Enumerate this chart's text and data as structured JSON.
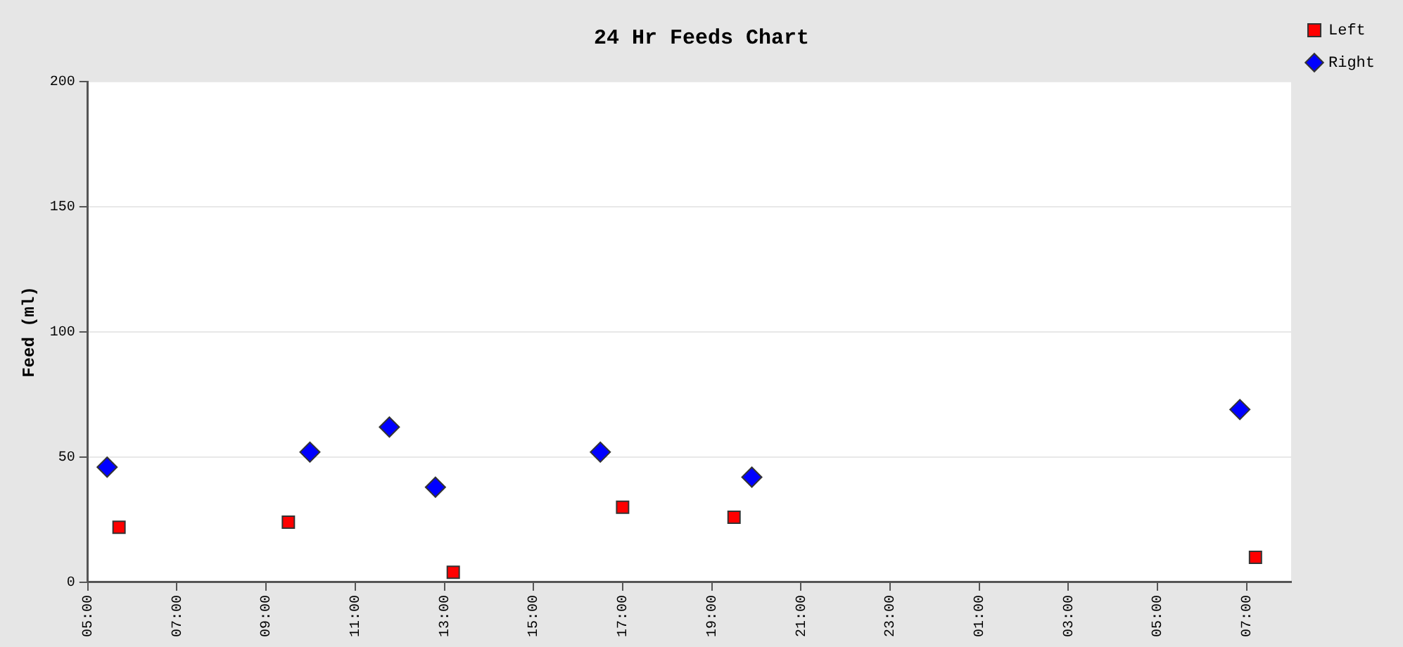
{
  "chart_data": {
    "type": "scatter",
    "title": "24 Hr Feeds Chart",
    "ylabel": "Feed (ml)",
    "xlim": [
      "2000-01-01T05:00",
      "2000-01-02T08:00"
    ],
    "xticks": [
      {
        "value": "2000-01-01T05:00",
        "label": "05:00"
      },
      {
        "value": "2000-01-01T07:00",
        "label": "07:00"
      },
      {
        "value": "2000-01-01T09:00",
        "label": "09:00"
      },
      {
        "value": "2000-01-01T11:00",
        "label": "11:00"
      },
      {
        "value": "2000-01-01T13:00",
        "label": "13:00"
      },
      {
        "value": "2000-01-01T15:00",
        "label": "15:00"
      },
      {
        "value": "2000-01-01T17:00",
        "label": "17:00"
      },
      {
        "value": "2000-01-01T19:00",
        "label": "19:00"
      },
      {
        "value": "2000-01-01T21:00",
        "label": "21:00"
      },
      {
        "value": "2000-01-01T23:00",
        "label": "23:00"
      },
      {
        "value": "2000-01-02T01:00",
        "label": "01:00"
      },
      {
        "value": "2000-01-02T03:00",
        "label": "03:00"
      },
      {
        "value": "2000-01-02T05:00",
        "label": "05:00"
      },
      {
        "value": "2000-01-02T07:00",
        "label": "07:00"
      }
    ],
    "ylim": [
      0,
      200
    ],
    "yticks": [
      0,
      50,
      100,
      150,
      200
    ],
    "grid": "y",
    "legend": "top right",
    "series": [
      {
        "name": "Left",
        "color": "#ff0000",
        "marker": "square",
        "x": [
          "2000-01-01T05:42",
          "2000-01-01T09:30",
          "2000-01-01T13:12",
          "2000-01-01T17:00",
          "2000-01-01T19:30",
          "2000-01-02T07:12"
        ],
        "values": [
          22,
          24,
          4,
          30,
          26,
          10
        ]
      },
      {
        "name": "Right",
        "color": "#0000ff",
        "marker": "diamond",
        "x": [
          "2000-01-01T05:26",
          "2000-01-01T09:59",
          "2000-01-01T11:46",
          "2000-01-01T12:48",
          "2000-01-01T16:30",
          "2000-01-01T19:54",
          "2000-01-02T06:51"
        ],
        "values": [
          46,
          52,
          62,
          38,
          52,
          42,
          69
        ]
      }
    ]
  }
}
